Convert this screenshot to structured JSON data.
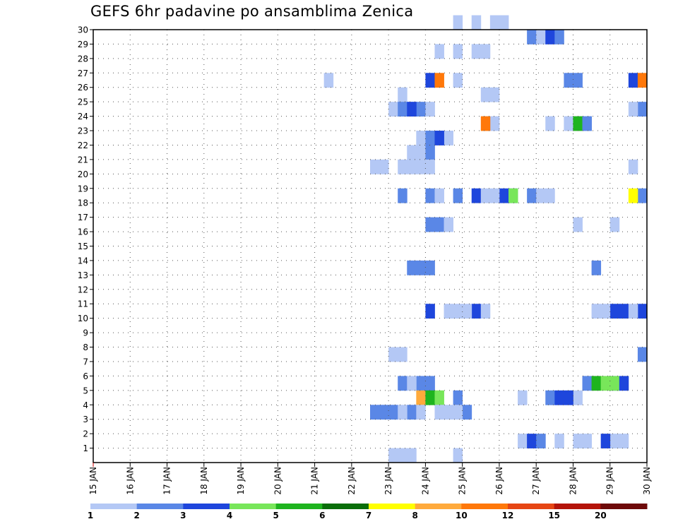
{
  "chart_data": {
    "type": "heatmap",
    "title": "GEFS 6hr padavine po ansamblima Zenica",
    "xlabel": "",
    "ylabel": "",
    "x_tick_labels": [
      "15 JAN",
      "16 JAN",
      "17 JAN",
      "18 JAN",
      "19 JAN",
      "20 JAN",
      "21 JAN",
      "22 JAN",
      "23 JAN",
      "24 JAN",
      "25 JAN",
      "26 JAN",
      "27 JAN",
      "28 JAN",
      "29 JAN",
      "30 JAN"
    ],
    "x_unit": "6-hour step (day index, 4 steps per day)",
    "xlim": [
      0,
      60
    ],
    "y_tick_labels": [
      "1",
      "2",
      "3",
      "4",
      "5",
      "6",
      "7",
      "8",
      "9",
      "10",
      "11",
      "12",
      "13",
      "14",
      "15",
      "16",
      "17",
      "18",
      "19",
      "20",
      "21",
      "22",
      "23",
      "24",
      "25",
      "26",
      "27",
      "28",
      "29",
      "30"
    ],
    "ylim": [
      0,
      30
    ],
    "grid": true,
    "legend": {
      "placement": "bottom",
      "labels": [
        "1",
        "2",
        "3",
        "4",
        "5",
        "6",
        "7",
        "8",
        "10",
        "12",
        "15",
        "20"
      ],
      "colors": [
        "#b4c8f5",
        "#5a87e6",
        "#1e46dc",
        "#78e65a",
        "#1eb41e",
        "#0a6e0a",
        "#ffff00",
        "#ffaa3c",
        "#ff780a",
        "#e64614",
        "#b4140a",
        "#6e0a0a"
      ]
    },
    "cells": [
      {
        "member": 30,
        "steps": [
          [
            39,
            1
          ],
          [
            41,
            1
          ],
          [
            43,
            2
          ]
        ],
        "level": 1
      },
      {
        "member": 29,
        "steps": [
          [
            47,
            1
          ]
        ],
        "level": 2
      },
      {
        "member": 29,
        "steps": [
          [
            48,
            1
          ]
        ],
        "level": 1
      },
      {
        "member": 29,
        "steps": [
          [
            49,
            1
          ]
        ],
        "level": 3
      },
      {
        "member": 29,
        "steps": [
          [
            50,
            1
          ]
        ],
        "level": 2
      },
      {
        "member": 28,
        "steps": [
          [
            37,
            1
          ],
          [
            39,
            1
          ],
          [
            41,
            2
          ]
        ],
        "level": 1
      },
      {
        "member": 26,
        "steps": [
          [
            25,
            1
          ],
          [
            39,
            1
          ]
        ],
        "level": 1
      },
      {
        "member": 26,
        "steps": [
          [
            36,
            1
          ]
        ],
        "level": 3
      },
      {
        "member": 26,
        "steps": [
          [
            37,
            1
          ]
        ],
        "level": 9
      },
      {
        "member": 26,
        "steps": [
          [
            51,
            2
          ]
        ],
        "level": 2
      },
      {
        "member": 26,
        "steps": [
          [
            58,
            1
          ]
        ],
        "level": 3
      },
      {
        "member": 26,
        "steps": [
          [
            59,
            1
          ]
        ],
        "level": 9
      },
      {
        "member": 25,
        "steps": [
          [
            33,
            1
          ],
          [
            42,
            2
          ]
        ],
        "level": 1
      },
      {
        "member": 24,
        "steps": [
          [
            32,
            1
          ],
          [
            34,
            1
          ]
        ],
        "level": 1
      },
      {
        "member": 24,
        "steps": [
          [
            33,
            1
          ],
          [
            35,
            1
          ],
          [
            59,
            1
          ]
        ],
        "level": 2
      },
      {
        "member": 24,
        "steps": [
          [
            34,
            1
          ]
        ],
        "level": 3
      },
      {
        "member": 24,
        "steps": [
          [
            36,
            1
          ],
          [
            58,
            1
          ]
        ],
        "level": 1
      },
      {
        "member": 23,
        "steps": [
          [
            43,
            1
          ],
          [
            49,
            1
          ],
          [
            51,
            1
          ]
        ],
        "level": 1
      },
      {
        "member": 23,
        "steps": [
          [
            42,
            1
          ]
        ],
        "level": 9
      },
      {
        "member": 23,
        "steps": [
          [
            52,
            1
          ]
        ],
        "level": 5
      },
      {
        "member": 23,
        "steps": [
          [
            53,
            1
          ]
        ],
        "level": 2
      },
      {
        "member": 22,
        "steps": [
          [
            35,
            1
          ],
          [
            37,
            2
          ]
        ],
        "level": 1
      },
      {
        "member": 22,
        "steps": [
          [
            36,
            1
          ]
        ],
        "level": 2
      },
      {
        "member": 22,
        "steps": [
          [
            37,
            1
          ]
        ],
        "level": 3
      },
      {
        "member": 21,
        "steps": [
          [
            34,
            2
          ]
        ],
        "level": 1
      },
      {
        "member": 21,
        "steps": [
          [
            36,
            1
          ]
        ],
        "level": 2
      },
      {
        "member": 20,
        "steps": [
          [
            30,
            2
          ],
          [
            33,
            4
          ],
          [
            58,
            1
          ]
        ],
        "level": 1
      },
      {
        "member": 18,
        "steps": [
          [
            33,
            1
          ],
          [
            36,
            1
          ],
          [
            39,
            1
          ],
          [
            45,
            1
          ],
          [
            47,
            1
          ],
          [
            59,
            1
          ]
        ],
        "level": 2
      },
      {
        "member": 18,
        "steps": [
          [
            41,
            1
          ],
          [
            44,
            1
          ]
        ],
        "level": 3
      },
      {
        "member": 18,
        "steps": [
          [
            37,
            1
          ],
          [
            42,
            1
          ],
          [
            43,
            1
          ],
          [
            48,
            2
          ]
        ],
        "level": 1
      },
      {
        "member": 18,
        "steps": [
          [
            45,
            1
          ]
        ],
        "level": 4
      },
      {
        "member": 18,
        "steps": [
          [
            58,
            1
          ]
        ],
        "level": 7
      },
      {
        "member": 16,
        "steps": [
          [
            36,
            2
          ]
        ],
        "level": 2
      },
      {
        "member": 16,
        "steps": [
          [
            38,
            1
          ],
          [
            52,
            1
          ],
          [
            56,
            1
          ]
        ],
        "level": 1
      },
      {
        "member": 13,
        "steps": [
          [
            34,
            3
          ]
        ],
        "level": 2
      },
      {
        "member": 13,
        "steps": [
          [
            54,
            1
          ]
        ],
        "level": 2
      },
      {
        "member": 10,
        "steps": [
          [
            36,
            1
          ],
          [
            41,
            1
          ],
          [
            56,
            2
          ],
          [
            59,
            1
          ]
        ],
        "level": 3
      },
      {
        "member": 10,
        "steps": [
          [
            38,
            2
          ],
          [
            40,
            1
          ],
          [
            42,
            1
          ],
          [
            54,
            2
          ],
          [
            58,
            1
          ]
        ],
        "level": 1
      },
      {
        "member": 7,
        "steps": [
          [
            32,
            2
          ]
        ],
        "level": 1
      },
      {
        "member": 7,
        "steps": [
          [
            59,
            1
          ]
        ],
        "level": 2
      },
      {
        "member": 5,
        "steps": [
          [
            33,
            1
          ],
          [
            35,
            1
          ],
          [
            53,
            1
          ],
          [
            56,
            1
          ]
        ],
        "level": 2
      },
      {
        "member": 5,
        "steps": [
          [
            34,
            1
          ]
        ],
        "level": 1
      },
      {
        "member": 5,
        "steps": [
          [
            36,
            1
          ]
        ],
        "level": 2
      },
      {
        "member": 5,
        "steps": [
          [
            54,
            1
          ]
        ],
        "level": 5
      },
      {
        "member": 5,
        "steps": [
          [
            55,
            2
          ]
        ],
        "level": 4
      },
      {
        "member": 5,
        "steps": [
          [
            57,
            1
          ]
        ],
        "level": 3
      },
      {
        "member": 4,
        "steps": [
          [
            35,
            1
          ]
        ],
        "level": 8
      },
      {
        "member": 4,
        "steps": [
          [
            36,
            1
          ]
        ],
        "level": 5
      },
      {
        "member": 4,
        "steps": [
          [
            37,
            1
          ]
        ],
        "level": 4
      },
      {
        "member": 4,
        "steps": [
          [
            39,
            1
          ]
        ],
        "level": 2
      },
      {
        "member": 4,
        "steps": [
          [
            46,
            1
          ],
          [
            52,
            1
          ]
        ],
        "level": 1
      },
      {
        "member": 4,
        "steps": [
          [
            49,
            1
          ]
        ],
        "level": 2
      },
      {
        "member": 4,
        "steps": [
          [
            50,
            2
          ]
        ],
        "level": 3
      },
      {
        "member": 3,
        "steps": [
          [
            30,
            3
          ],
          [
            34,
            1
          ],
          [
            40,
            1
          ]
        ],
        "level": 2
      },
      {
        "member": 3,
        "steps": [
          [
            33,
            1
          ],
          [
            35,
            1
          ],
          [
            37,
            3
          ]
        ],
        "level": 1
      },
      {
        "member": 1,
        "steps": [
          [
            46,
            1
          ],
          [
            50,
            1
          ],
          [
            52,
            2
          ],
          [
            56,
            2
          ]
        ],
        "level": 1
      },
      {
        "member": 1,
        "steps": [
          [
            47,
            1
          ],
          [
            55,
            1
          ]
        ],
        "level": 3
      },
      {
        "member": 1,
        "steps": [
          [
            48,
            1
          ]
        ],
        "level": 2
      },
      {
        "member": 0,
        "steps": [
          [
            32,
            3
          ],
          [
            39,
            1
          ]
        ],
        "level": 1
      }
    ]
  }
}
